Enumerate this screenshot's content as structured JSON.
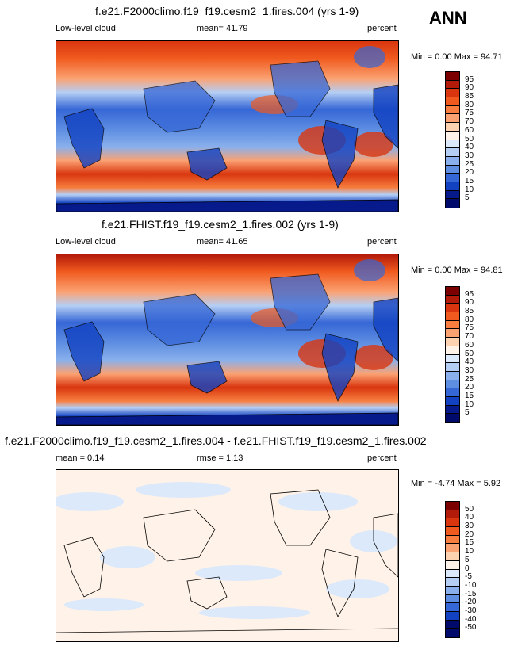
{
  "season": "ANN",
  "panels": [
    {
      "title": "f.e21.F2000climo.f19_f19.cesm2_1.fires.004 (yrs 1-9)",
      "left_label": "Low-level cloud",
      "center_label": "mean=  41.79",
      "right_label": "percent",
      "stats": "Min =   0.00 Max =  94.71",
      "levels": [
        "95",
        "90",
        "85",
        "80",
        "75",
        "70",
        "60",
        "50",
        "40",
        "30",
        "25",
        "20",
        "15",
        "10",
        "5"
      ]
    },
    {
      "title": "f.e21.FHIST.f19_f19.cesm2_1.fires.002 (yrs 1-9)",
      "left_label": "Low-level cloud",
      "center_label": "mean=  41.65",
      "right_label": "percent",
      "stats": "Min =   0.00 Max =  94.81",
      "levels": [
        "95",
        "90",
        "85",
        "80",
        "75",
        "70",
        "60",
        "50",
        "40",
        "30",
        "25",
        "20",
        "15",
        "10",
        "5"
      ]
    },
    {
      "title": "f.e21.F2000climo.f19_f19.cesm2_1.fires.004 - f.e21.FHIST.f19_f19.cesm2_1.fires.002",
      "left_label": "mean =   0.14",
      "center_label": "rmse =   1.13",
      "right_label": "percent",
      "stats": "Min =  -4.74 Max =   5.92",
      "levels": [
        "50",
        "40",
        "30",
        "20",
        "15",
        "10",
        "5",
        "0",
        "-5",
        "-10",
        "-15",
        "-20",
        "-30",
        "-40",
        "-50"
      ]
    }
  ],
  "colors": {
    "cbar": [
      "#7b0000",
      "#b21a0a",
      "#d9360f",
      "#f05a1e",
      "#f77e3f",
      "#fba273",
      "#fdd2b1",
      "#fff2e8",
      "#dce9fb",
      "#b5cff4",
      "#89b0ec",
      "#5e8ee2",
      "#3667d6",
      "#1242c2",
      "#061a8c",
      "#000a6a"
    ]
  }
}
